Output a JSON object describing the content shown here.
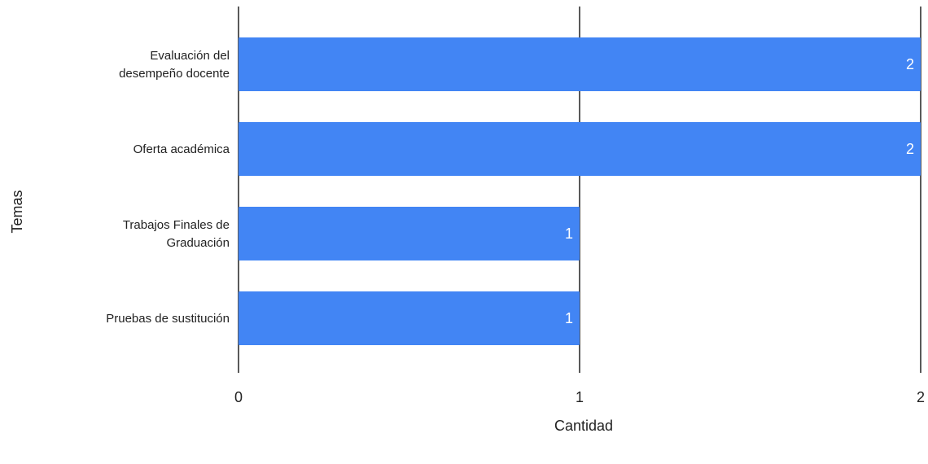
{
  "chart_data": {
    "type": "bar",
    "orientation": "horizontal",
    "title": "",
    "xlabel": "Cantidad",
    "ylabel": "Temas",
    "categories": [
      [
        "Evaluación del",
        "desempeño docente"
      ],
      [
        "Oferta académica"
      ],
      [
        "Trabajos Finales de",
        "Graduación"
      ],
      [
        "Pruebas de sustitución"
      ]
    ],
    "values": [
      2,
      2,
      1,
      1
    ],
    "data_labels": [
      "2",
      "2",
      "1",
      "1"
    ],
    "xlim": [
      0,
      2
    ],
    "x_ticks": [
      0,
      1,
      2
    ],
    "x_tick_labels": [
      "0",
      "1",
      "2"
    ],
    "grid": "vertical",
    "legend": "none",
    "colors": {
      "bar": "#4285f4",
      "grid": "#000000",
      "text": "#222222",
      "label_text": "#ffffff"
    }
  }
}
